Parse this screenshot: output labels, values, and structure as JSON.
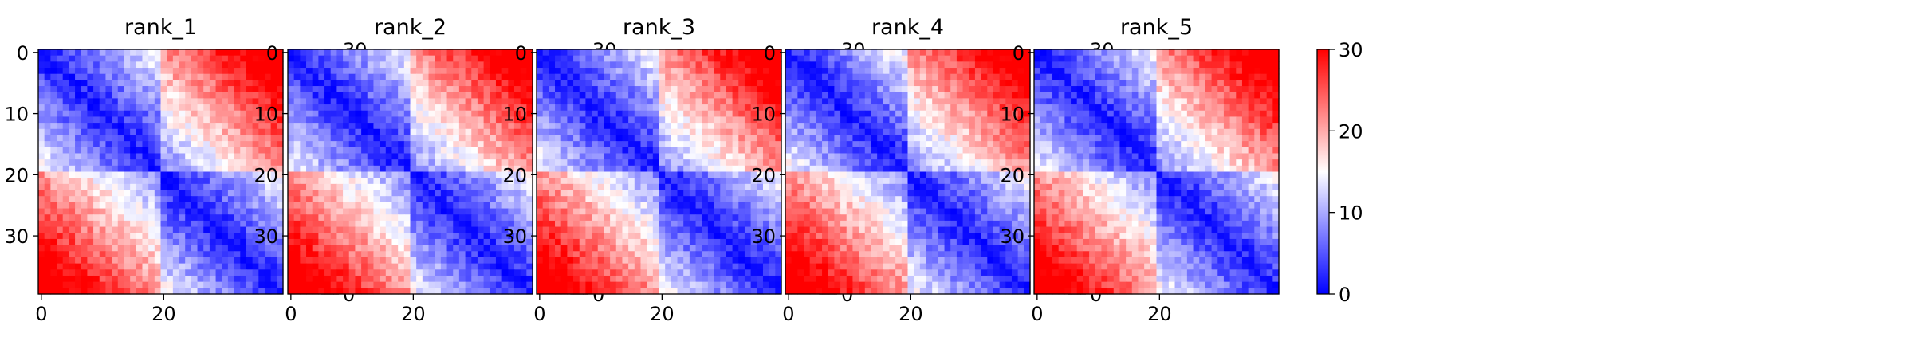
{
  "chart_data": [
    {
      "type": "heatmap",
      "title": "rank_1",
      "size": 40,
      "xlim": [
        0,
        39
      ],
      "ylim": [
        39,
        0
      ],
      "xticks": [
        0,
        20
      ],
      "yticks": [
        0,
        10,
        20,
        30
      ],
      "colorbar": {
        "min": 0,
        "max": 30,
        "ticks": [
          0,
          10,
          20,
          30
        ],
        "colors": [
          "#0000ff",
          "#ffffff",
          "#ff0000"
        ]
      },
      "domains": [
        [
          0,
          19
        ],
        [
          20,
          39
        ]
      ],
      "noise_seed": 11
    },
    {
      "type": "heatmap",
      "title": "rank_2",
      "size": 40,
      "xlim": [
        0,
        39
      ],
      "ylim": [
        39,
        0
      ],
      "xticks": [
        0,
        20
      ],
      "yticks": [
        0,
        10,
        20,
        30
      ],
      "colorbar": {
        "min": 0,
        "max": 30,
        "ticks": [
          0,
          10,
          20,
          30
        ],
        "colors": [
          "#0000ff",
          "#ffffff",
          "#ff0000"
        ]
      },
      "domains": [
        [
          0,
          19
        ],
        [
          20,
          39
        ]
      ],
      "noise_seed": 23
    },
    {
      "type": "heatmap",
      "title": "rank_3",
      "size": 40,
      "xlim": [
        0,
        39
      ],
      "ylim": [
        39,
        0
      ],
      "xticks": [
        0,
        20
      ],
      "yticks": [
        0,
        10,
        20,
        30
      ],
      "colorbar": {
        "min": 0,
        "max": 30,
        "ticks": [
          0,
          10,
          20,
          30
        ],
        "colors": [
          "#0000ff",
          "#ffffff",
          "#ff0000"
        ]
      },
      "domains": [
        [
          0,
          19
        ],
        [
          20,
          39
        ]
      ],
      "noise_seed": 37
    },
    {
      "type": "heatmap",
      "title": "rank_4",
      "size": 40,
      "xlim": [
        0,
        39
      ],
      "ylim": [
        39,
        0
      ],
      "xticks": [
        0,
        20
      ],
      "yticks": [
        0,
        10,
        20,
        30
      ],
      "colorbar": {
        "min": 0,
        "max": 30,
        "ticks": [
          0,
          10,
          20,
          30
        ],
        "colors": [
          "#0000ff",
          "#ffffff",
          "#ff0000"
        ]
      },
      "domains": [
        [
          0,
          19
        ],
        [
          20,
          39
        ]
      ],
      "noise_seed": 41
    },
    {
      "type": "heatmap",
      "title": "rank_5",
      "size": 40,
      "xlim": [
        0,
        39
      ],
      "ylim": [
        39,
        0
      ],
      "xticks": [
        0,
        20
      ],
      "yticks": [
        0,
        10,
        20,
        30
      ],
      "colorbar": {
        "min": 0,
        "max": 30,
        "ticks": [
          0,
          10,
          20,
          30
        ],
        "colors": [
          "#0000ff",
          "#ffffff",
          "#ff0000"
        ]
      },
      "domains": [
        [
          0,
          19
        ],
        [
          20,
          39
        ]
      ],
      "noise_seed": 53
    }
  ]
}
